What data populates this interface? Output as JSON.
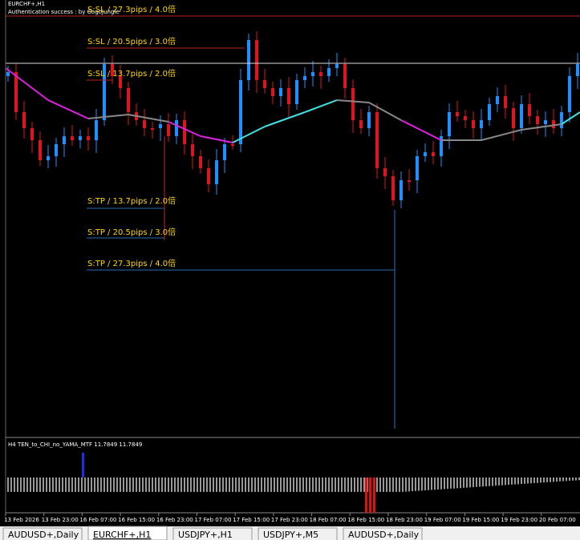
{
  "window": {
    "symbol": "EURCHF+,H1",
    "auth_message": "Authentication success : by GogoJungle"
  },
  "levels": [
    "S:SL / 27.3pips / 4.0倍",
    "S:SL / 20.5pips / 3.0倍",
    "S:SL / 13.7pips / 2.0倍",
    "S:TP / 13.7pips / 2.0倍",
    "S:TP / 20.5pips / 3.0倍",
    "S:TP / 27.3pips / 4.0倍"
  ],
  "indicator": {
    "label": "H4  TEN_to_CHI_no_YAMA_MTF  11.7849 11.7849"
  },
  "time_axis": [
    "13 Feb 2026",
    "13 Feb 23:00",
    "16 Feb 07:00",
    "16 Feb 15:00",
    "16 Feb 23:00",
    "17 Feb 07:00",
    "17 Feb 15:00",
    "17 Feb 23:00",
    "18 Feb 07:00",
    "18 Feb 15:00",
    "18 Feb 23:00",
    "19 Feb 07:00",
    "19 Feb 15:00",
    "19 Feb 23:00",
    "20 Feb 07:00"
  ],
  "tabs": [
    "AUDUSD+,Daily",
    "EURCHF+,H1",
    "USDJPY+,H1",
    "USDJPY+,M5",
    "AUDUSD+,Daily"
  ],
  "active_tab": 1
}
